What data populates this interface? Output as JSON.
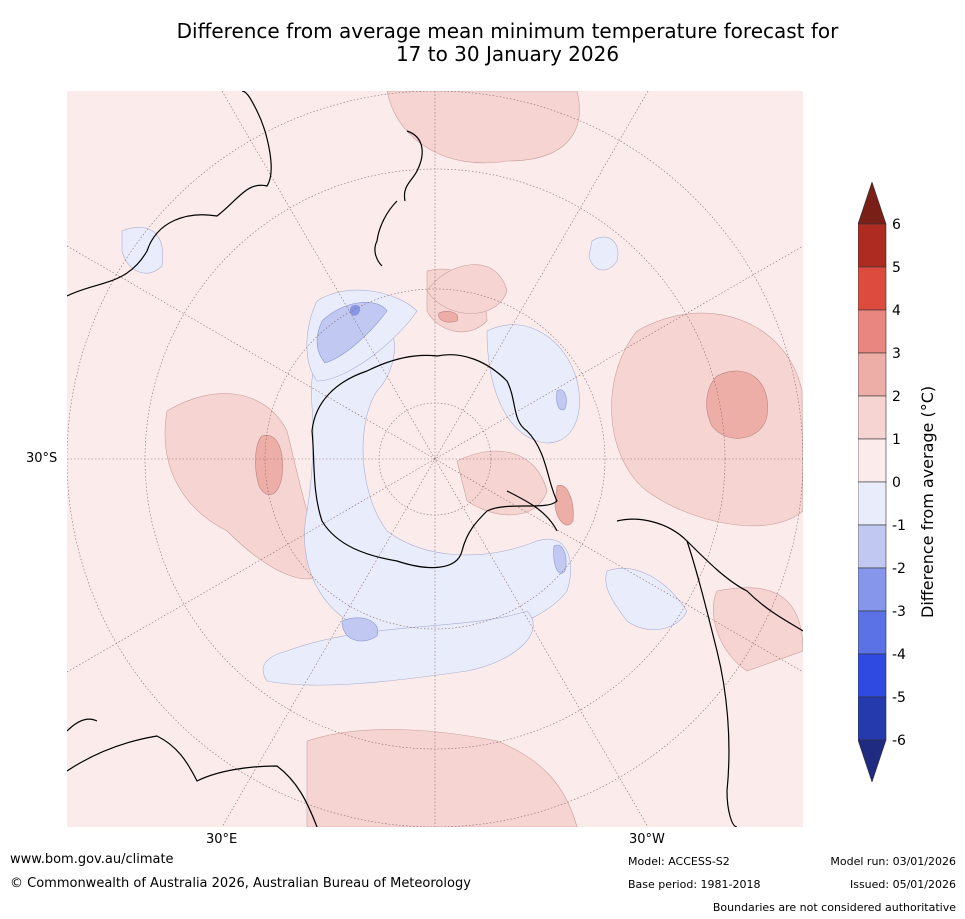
{
  "title": {
    "line1": "Difference from average mean minimum temperature forecast for",
    "line2": "17 to 30 January 2026"
  },
  "map": {
    "projection": "south polar stereographic",
    "lat_label": "30°S",
    "lon_labels": {
      "east": "30°E",
      "west": "30°W"
    },
    "anomaly_regions": [
      {
        "region": "central Pacific (east of NZ)",
        "category": "2 to 3"
      },
      {
        "region": "Indian Ocean south of Africa",
        "category": "2 to 3"
      },
      {
        "region": "Weddell Sea / Antarctic Peninsula",
        "category": "2 to 3"
      },
      {
        "region": "Antarctic coast ring",
        "category": "0 to -1"
      },
      {
        "region": "Ross Sea",
        "category": "-1 to -2"
      }
    ]
  },
  "colorbar": {
    "label": "Difference from average (°C)",
    "ticks": [
      "6",
      "5",
      "4",
      "3",
      "2",
      "1",
      "0",
      "-1",
      "-2",
      "-3",
      "-4",
      "-5",
      "-6"
    ],
    "colors": {
      "above_6": "#7a1f17",
      "5_6": "#ad2b21",
      "4_5": "#dd4b3f",
      "3_4": "#e8867f",
      "2_3": "#eeaea8",
      "1_2": "#f5d4d2",
      "0_1": "#fbeceb",
      "-1_0": "#e9ecfa",
      "-2_-1": "#c1c8f2",
      "-3_-2": "#8696ea",
      "-4_-3": "#5b71e6",
      "-5_-4": "#2e4ae0",
      "-6_-5": "#253aad",
      "below_-6": "#1f2b80"
    }
  },
  "footer": {
    "website": "www.bom.gov.au/climate",
    "copyright": "© Commonwealth of Australia 2026, Australian Bureau of Meteorology",
    "model": "Model: ACCESS-S2",
    "base_period": "Base period: 1981-2018",
    "model_run": "Model run: 03/01/2026",
    "issued": "Issued: 05/01/2026",
    "disclaimer": "Boundaries are not considered authoritative"
  }
}
